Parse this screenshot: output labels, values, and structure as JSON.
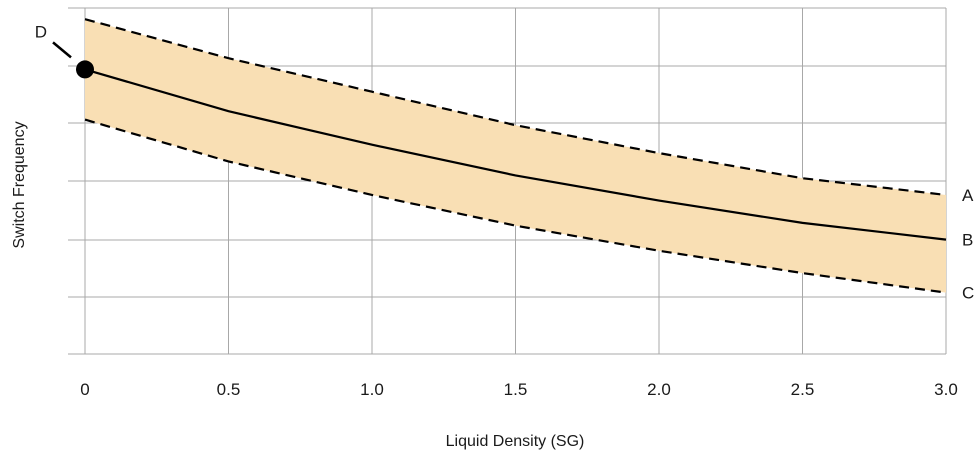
{
  "chart_data": {
    "type": "line",
    "title": "",
    "xlabel": "Liquid Density (SG)",
    "ylabel": "Switch Frequency",
    "xlim": [
      0,
      3.0
    ],
    "ylim": [
      0,
      6.2
    ],
    "x_ticks": [
      "0",
      "0.5",
      "1.0",
      "1.5",
      "2.0",
      "2.5",
      "3.0"
    ],
    "y_ticks_labeled": false,
    "grid": true,
    "band_color": "#f9dfb4",
    "line_color": "#000000",
    "series": [
      {
        "name": "A",
        "style": "dashed",
        "x": [
          0,
          0.5,
          1.0,
          1.5,
          2.0,
          2.5,
          3.0
        ],
        "y": [
          6.0,
          5.3,
          4.7,
          4.1,
          3.6,
          3.15,
          2.85
        ]
      },
      {
        "name": "B",
        "style": "solid",
        "x": [
          0,
          0.5,
          1.0,
          1.5,
          2.0,
          2.5,
          3.0
        ],
        "y": [
          5.1,
          4.35,
          3.75,
          3.2,
          2.75,
          2.35,
          2.05
        ]
      },
      {
        "name": "C",
        "style": "dashed",
        "x": [
          0,
          0.5,
          1.0,
          1.5,
          2.0,
          2.5,
          3.0
        ],
        "y": [
          4.2,
          3.45,
          2.85,
          2.3,
          1.85,
          1.45,
          1.1
        ]
      }
    ],
    "annotations": [
      {
        "label": "D",
        "x": 0,
        "y": 5.1,
        "marker": "filled-circle"
      }
    ]
  }
}
